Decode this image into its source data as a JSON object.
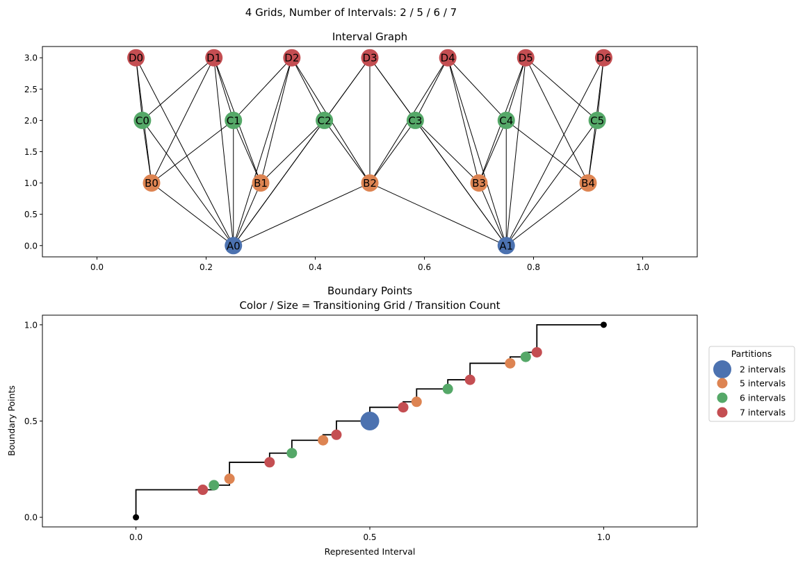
{
  "figure": {
    "suptitle": "4 Grids, Number of Intervals: 2 / 5 / 6 / 7"
  },
  "colors": {
    "A": "#4c72b0",
    "B": "#dd8452",
    "C": "#55a868",
    "D": "#c44e52",
    "edge": "#000000",
    "endpoint": "#000000"
  },
  "chart_data": [
    {
      "type": "network",
      "title": "Interval Graph",
      "xlim": [
        -0.1,
        1.1
      ],
      "ylim": [
        -0.18,
        3.18
      ],
      "x_ticks": [
        0.0,
        0.2,
        0.4,
        0.6,
        0.8,
        1.0
      ],
      "x_tick_labels": [
        "0.0",
        "0.2",
        "0.4",
        "0.6",
        "0.8",
        "1.0"
      ],
      "y_ticks": [
        0.0,
        0.5,
        1.0,
        1.5,
        2.0,
        2.5,
        3.0
      ],
      "y_tick_labels": [
        "0.0",
        "0.5",
        "1.0",
        "1.5",
        "2.0",
        "2.5",
        "3.0"
      ],
      "nodes": [
        {
          "id": "A0",
          "group": "A",
          "x": 0.25,
          "y": 0
        },
        {
          "id": "A1",
          "group": "A",
          "x": 0.75,
          "y": 0
        },
        {
          "id": "B0",
          "group": "B",
          "x": 0.1,
          "y": 1
        },
        {
          "id": "B1",
          "group": "B",
          "x": 0.3,
          "y": 1
        },
        {
          "id": "B2",
          "group": "B",
          "x": 0.5,
          "y": 1
        },
        {
          "id": "B3",
          "group": "B",
          "x": 0.7,
          "y": 1
        },
        {
          "id": "B4",
          "group": "B",
          "x": 0.9,
          "y": 1
        },
        {
          "id": "C0",
          "group": "C",
          "x": 0.0833,
          "y": 2
        },
        {
          "id": "C1",
          "group": "C",
          "x": 0.25,
          "y": 2
        },
        {
          "id": "C2",
          "group": "C",
          "x": 0.4167,
          "y": 2
        },
        {
          "id": "C3",
          "group": "C",
          "x": 0.5833,
          "y": 2
        },
        {
          "id": "C4",
          "group": "C",
          "x": 0.75,
          "y": 2
        },
        {
          "id": "C5",
          "group": "C",
          "x": 0.9167,
          "y": 2
        },
        {
          "id": "D0",
          "group": "D",
          "x": 0.0714,
          "y": 3
        },
        {
          "id": "D1",
          "group": "D",
          "x": 0.2143,
          "y": 3
        },
        {
          "id": "D2",
          "group": "D",
          "x": 0.3571,
          "y": 3
        },
        {
          "id": "D3",
          "group": "D",
          "x": 0.5,
          "y": 3
        },
        {
          "id": "D4",
          "group": "D",
          "x": 0.6429,
          "y": 3
        },
        {
          "id": "D5",
          "group": "D",
          "x": 0.7857,
          "y": 3
        },
        {
          "id": "D6",
          "group": "D",
          "x": 0.9286,
          "y": 3
        }
      ],
      "edges": [
        [
          "A0",
          "B0"
        ],
        [
          "A0",
          "B1"
        ],
        [
          "A0",
          "B2"
        ],
        [
          "A0",
          "C0"
        ],
        [
          "A0",
          "C1"
        ],
        [
          "A0",
          "C2"
        ],
        [
          "A0",
          "D0"
        ],
        [
          "A0",
          "D1"
        ],
        [
          "A0",
          "D2"
        ],
        [
          "A0",
          "D3"
        ],
        [
          "A1",
          "B2"
        ],
        [
          "A1",
          "B3"
        ],
        [
          "A1",
          "B4"
        ],
        [
          "A1",
          "C3"
        ],
        [
          "A1",
          "C4"
        ],
        [
          "A1",
          "C5"
        ],
        [
          "A1",
          "D3"
        ],
        [
          "A1",
          "D4"
        ],
        [
          "A1",
          "D5"
        ],
        [
          "A1",
          "D6"
        ],
        [
          "B0",
          "C0"
        ],
        [
          "B0",
          "C1"
        ],
        [
          "B0",
          "D0"
        ],
        [
          "B0",
          "D1"
        ],
        [
          "B1",
          "C1"
        ],
        [
          "B1",
          "C2"
        ],
        [
          "B1",
          "D1"
        ],
        [
          "B1",
          "D2"
        ],
        [
          "B2",
          "C2"
        ],
        [
          "B2",
          "C3"
        ],
        [
          "B2",
          "D2"
        ],
        [
          "B2",
          "D3"
        ],
        [
          "B2",
          "D4"
        ],
        [
          "B3",
          "C3"
        ],
        [
          "B3",
          "C4"
        ],
        [
          "B3",
          "D4"
        ],
        [
          "B3",
          "D5"
        ],
        [
          "B4",
          "C4"
        ],
        [
          "B4",
          "C5"
        ],
        [
          "B4",
          "D5"
        ],
        [
          "B4",
          "D6"
        ],
        [
          "C0",
          "D0"
        ],
        [
          "C0",
          "D1"
        ],
        [
          "C1",
          "D1"
        ],
        [
          "C1",
          "D2"
        ],
        [
          "C2",
          "D2"
        ],
        [
          "C2",
          "D3"
        ],
        [
          "C3",
          "D3"
        ],
        [
          "C3",
          "D4"
        ],
        [
          "C4",
          "D4"
        ],
        [
          "C4",
          "D5"
        ],
        [
          "C5",
          "D5"
        ],
        [
          "C5",
          "D6"
        ]
      ]
    },
    {
      "type": "scatter",
      "title_lines": [
        "Boundary Points",
        "Color / Size = Transitioning Grid / Transition Count"
      ],
      "xlabel": "Represented Interval",
      "ylabel": "Boundary Points",
      "xlim": [
        -0.2,
        1.2
      ],
      "ylim": [
        -0.05,
        1.05
      ],
      "x_ticks": [
        0.0,
        0.5,
        1.0
      ],
      "x_tick_labels": [
        "0.0",
        "0.5",
        "1.0"
      ],
      "y_ticks": [
        0.0,
        0.5,
        1.0
      ],
      "y_tick_labels": [
        "0.0",
        "0.5",
        "1.0"
      ],
      "step_x": [
        0,
        0,
        0.1429,
        0.1667,
        0.1667,
        0.2,
        0.2,
        0.2857,
        0.2857,
        0.3333,
        0.3333,
        0.4,
        0.4,
        0.4286,
        0.4286,
        0.5,
        0.5,
        0.5714,
        0.5714,
        0.6,
        0.6,
        0.6667,
        0.6667,
        0.7143,
        0.7143,
        0.8,
        0.8,
        0.8333,
        0.8333,
        0.8571,
        0.8571,
        1.0
      ],
      "step_y": [
        0,
        0.1429,
        0.1429,
        0.1429,
        0.1667,
        0.1667,
        0.2857,
        0.2857,
        0.3333,
        0.3333,
        0.4,
        0.4,
        0.4286,
        0.4286,
        0.5,
        0.5,
        0.5714,
        0.5714,
        0.6,
        0.6,
        0.6667,
        0.6667,
        0.7143,
        0.7143,
        0.8,
        0.8,
        0.8333,
        0.8333,
        0.8571,
        0.8571,
        1.0,
        1.0
      ],
      "endpoints": [
        {
          "x": 0,
          "y": 0
        },
        {
          "x": 1,
          "y": 1
        }
      ],
      "points": [
        {
          "x": 0.1429,
          "y": 0.1429,
          "grid": "D",
          "count": 1
        },
        {
          "x": 0.1667,
          "y": 0.1667,
          "grid": "C",
          "count": 1
        },
        {
          "x": 0.2,
          "y": 0.2,
          "grid": "B",
          "count": 1
        },
        {
          "x": 0.2857,
          "y": 0.2857,
          "grid": "D",
          "count": 1
        },
        {
          "x": 0.3333,
          "y": 0.3333,
          "grid": "C",
          "count": 1
        },
        {
          "x": 0.4,
          "y": 0.4,
          "grid": "B",
          "count": 1
        },
        {
          "x": 0.4286,
          "y": 0.4286,
          "grid": "D",
          "count": 1
        },
        {
          "x": 0.5,
          "y": 0.5,
          "grid": "A",
          "count": 4
        },
        {
          "x": 0.5714,
          "y": 0.5714,
          "grid": "D",
          "count": 1
        },
        {
          "x": 0.6,
          "y": 0.6,
          "grid": "B",
          "count": 1
        },
        {
          "x": 0.6667,
          "y": 0.6667,
          "grid": "C",
          "count": 1
        },
        {
          "x": 0.7143,
          "y": 0.7143,
          "grid": "D",
          "count": 1
        },
        {
          "x": 0.8,
          "y": 0.8,
          "grid": "B",
          "count": 1
        },
        {
          "x": 0.8333,
          "y": 0.8333,
          "grid": "C",
          "count": 1
        },
        {
          "x": 0.8571,
          "y": 0.8571,
          "grid": "D",
          "count": 1
        }
      ],
      "legend": {
        "title": "Partitions",
        "placement": "right-outside",
        "entries": [
          {
            "label": "2 intervals",
            "grid": "A"
          },
          {
            "label": "5 intervals",
            "grid": "B"
          },
          {
            "label": "6 intervals",
            "grid": "C"
          },
          {
            "label": "7 intervals",
            "grid": "D"
          }
        ]
      }
    }
  ]
}
